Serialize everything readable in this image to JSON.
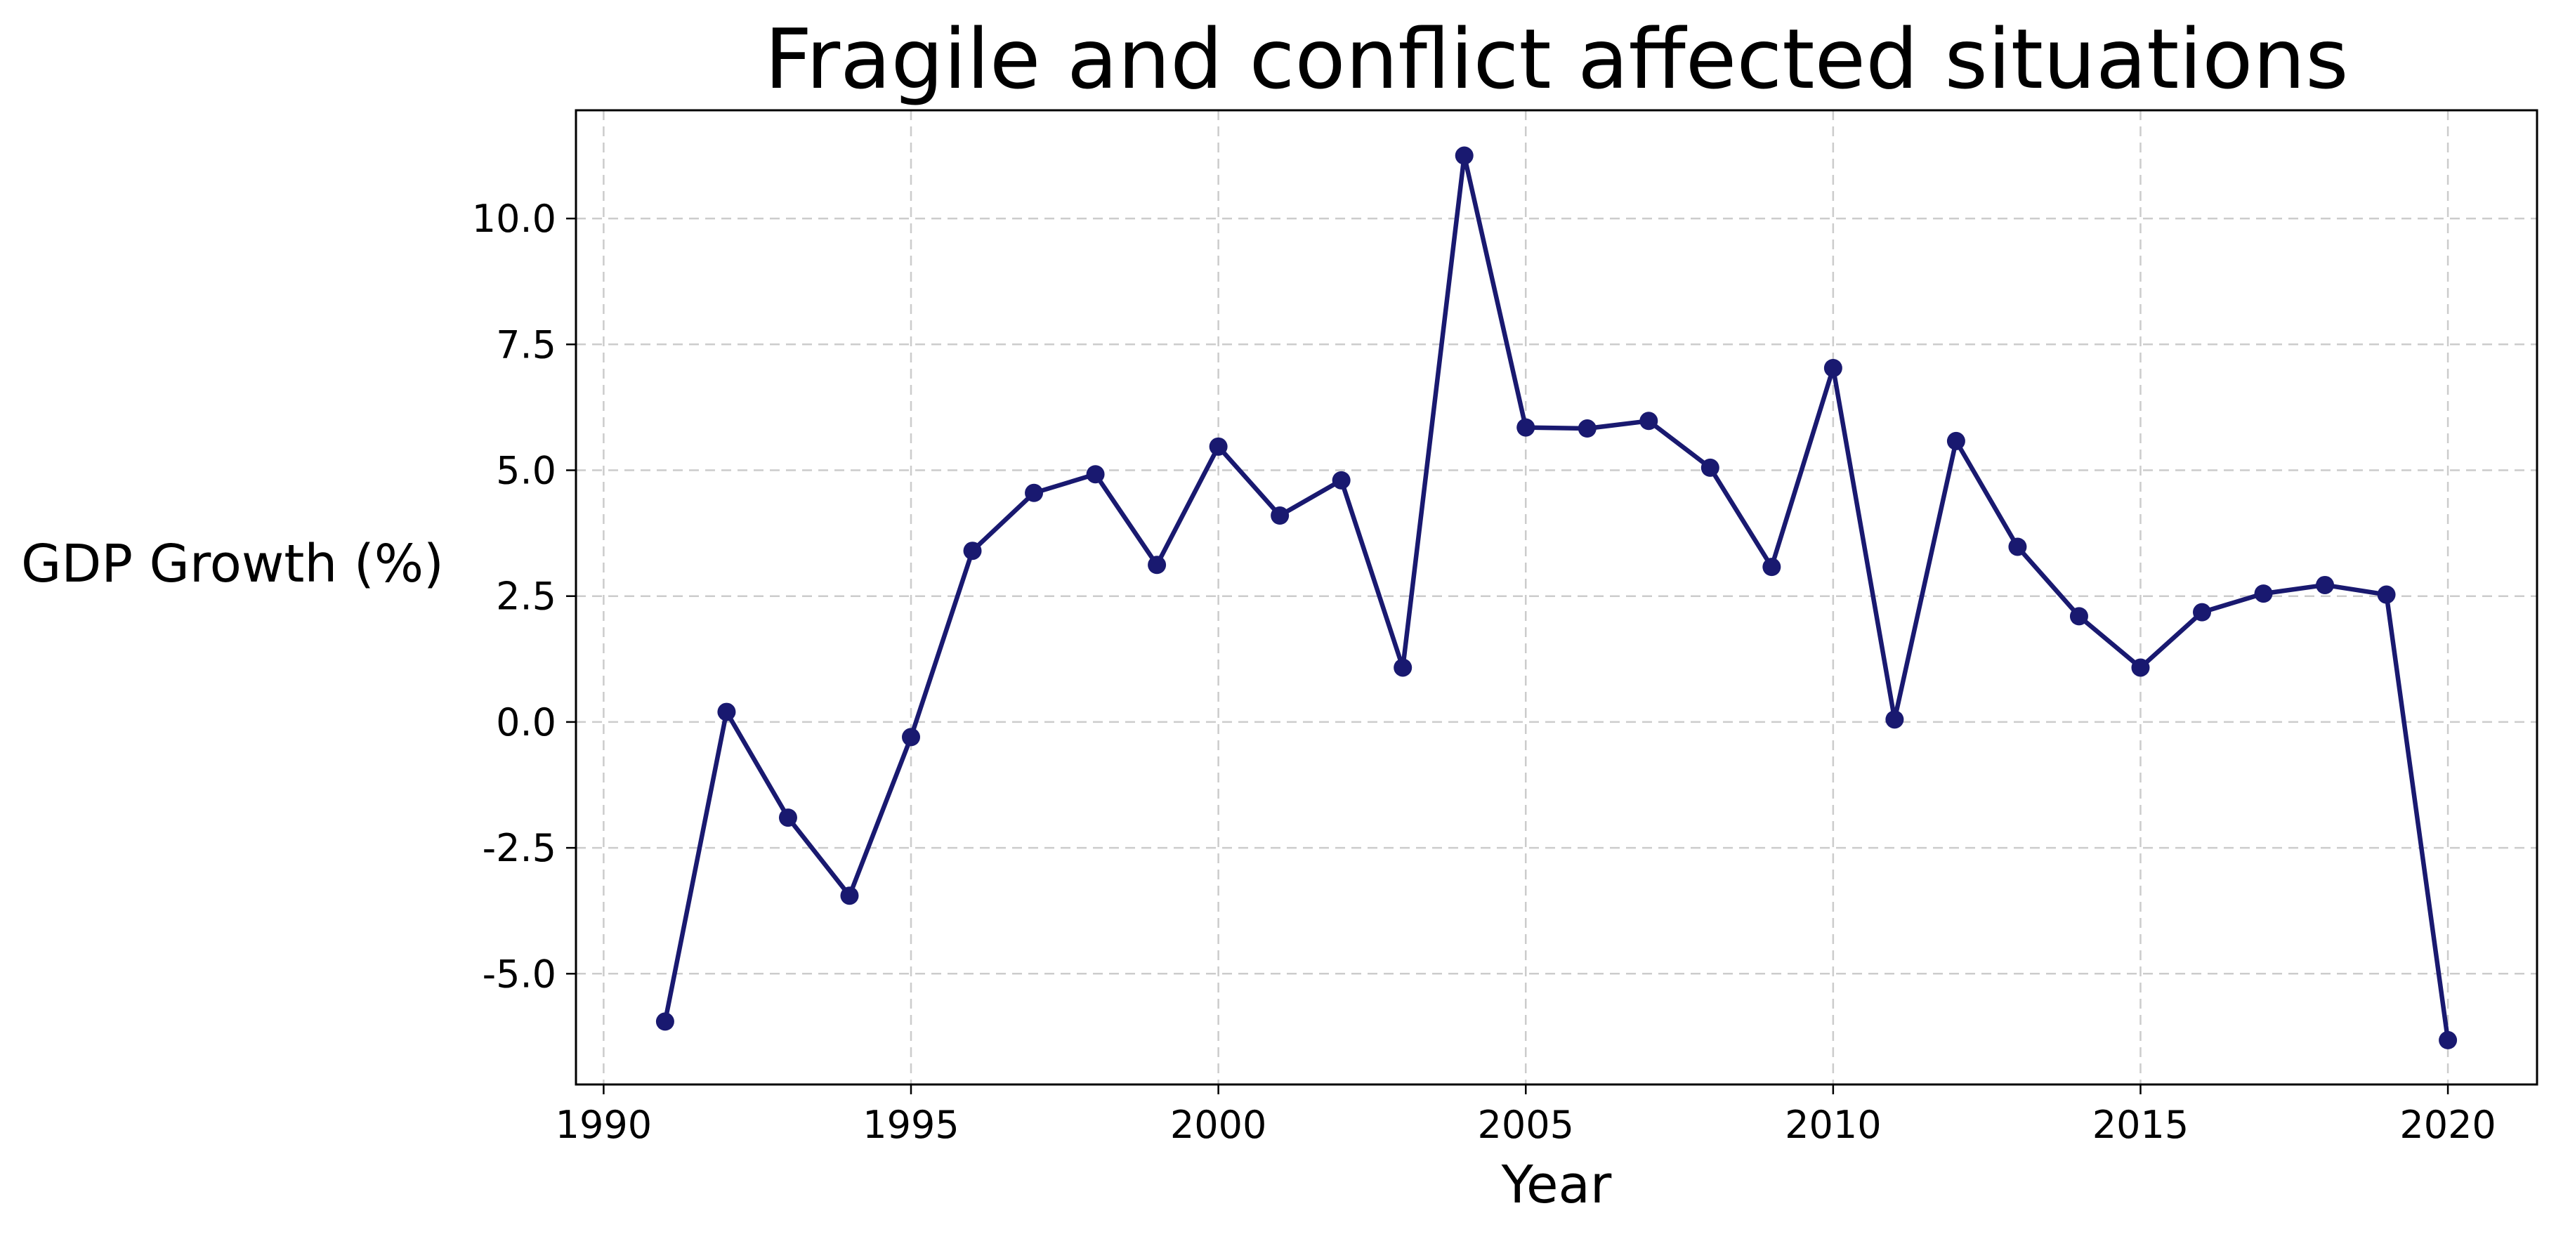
{
  "chart_data": {
    "type": "line",
    "title": "Fragile and conflict affected situations",
    "xlabel": "Year",
    "ylabel": "GDP Growth (%)",
    "xlim": [
      1989.55,
      2021.45
    ],
    "ylim": [
      -7.2,
      12.15
    ],
    "xticks": [
      1990,
      1995,
      2000,
      2005,
      2010,
      2015,
      2020
    ],
    "yticks": [
      -5.0,
      -2.5,
      0.0,
      2.5,
      5.0,
      7.5,
      10.0
    ],
    "ytick_labels": [
      "-5.0",
      "-2.5",
      "0.0",
      "2.5",
      "5.0",
      "7.5",
      "10.0"
    ],
    "grid": true,
    "line_color": "#191970",
    "marker": "circle",
    "x": [
      1991,
      1992,
      1993,
      1994,
      1995,
      1996,
      1997,
      1998,
      1999,
      2000,
      2001,
      2002,
      2003,
      2004,
      2005,
      2006,
      2007,
      2008,
      2009,
      2010,
      2011,
      2012,
      2013,
      2014,
      2015,
      2016,
      2017,
      2018,
      2019,
      2020
    ],
    "y": [
      -5.95,
      0.2,
      -1.9,
      -3.45,
      -0.3,
      3.4,
      4.55,
      4.92,
      3.12,
      5.47,
      4.1,
      4.8,
      1.08,
      11.25,
      5.85,
      5.83,
      5.98,
      5.05,
      3.08,
      7.03,
      0.05,
      5.58,
      3.48,
      2.1,
      1.08,
      2.18,
      2.55,
      2.72,
      2.53,
      -6.32
    ]
  }
}
